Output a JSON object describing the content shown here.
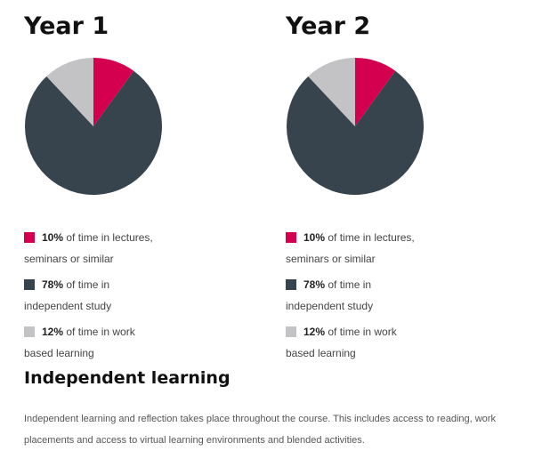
{
  "colors": {
    "lectures": "#d4004f",
    "independent": "#37444d",
    "work": "#c3c2c4"
  },
  "chart_data": [
    {
      "type": "pie",
      "title": "Year 1",
      "slices": [
        {
          "pct": "10%",
          "value": 10,
          "text": "of time in lectures,",
          "text2": "seminars or similar",
          "color_key": "lectures"
        },
        {
          "pct": "78%",
          "value": 78,
          "text": "of time in",
          "text2": "independent study",
          "color_key": "independent"
        },
        {
          "pct": "12%",
          "value": 12,
          "text": "of time in work",
          "text2": "based learning",
          "color_key": "work"
        }
      ]
    },
    {
      "type": "pie",
      "title": "Year 2",
      "slices": [
        {
          "pct": "10%",
          "value": 10,
          "text": "of time in lectures,",
          "text2": "seminars or similar",
          "color_key": "lectures"
        },
        {
          "pct": "78%",
          "value": 78,
          "text": "of time in",
          "text2": "independent study",
          "color_key": "independent"
        },
        {
          "pct": "12%",
          "value": 12,
          "text": "of time in work",
          "text2": "based learning",
          "color_key": "work"
        }
      ]
    }
  ],
  "section": {
    "title": "Independent learning",
    "body": "Independent learning and reflection takes place throughout the course. This includes access to reading, work placements and access to virtual learning environments and blended activities."
  }
}
